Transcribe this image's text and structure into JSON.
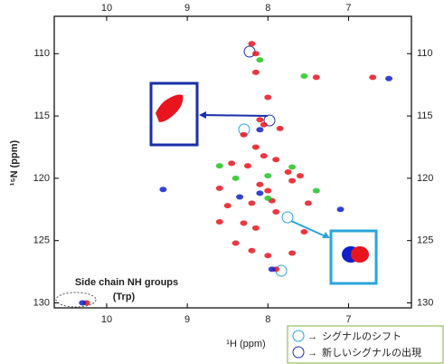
{
  "chart_data": {
    "type": "scatter",
    "x_label": "¹H (ppm)",
    "y_label": "¹⁵N (ppm)",
    "xlim": [
      10.65,
      6.22
    ],
    "ylim": [
      107,
      130.4
    ],
    "xticks": [
      10,
      9,
      8,
      7
    ],
    "yticks": [
      110,
      115,
      120,
      125,
      130
    ],
    "series": [
      {
        "color": "#e8141e",
        "x": [
          8.2,
          8.15,
          7.4,
          6.7,
          8.1,
          8.05,
          7.85,
          8.3,
          8.15,
          8.05,
          7.9,
          8.25,
          7.75,
          7.6,
          8.1,
          8.0,
          7.95,
          8.2,
          8.5,
          7.9,
          8.6,
          8.3,
          8.15,
          7.55,
          8.4,
          8.2,
          8.0,
          7.7,
          7.9,
          10.25,
          8.45,
          8.6,
          7.5,
          7.7,
          8.0,
          8.15
        ],
        "values": [
          109.2,
          110,
          111.9,
          111.9,
          115.3,
          115.7,
          116,
          116.5,
          117.5,
          118.2,
          118.5,
          119,
          119.5,
          119.8,
          120.5,
          121,
          121.8,
          122,
          122.2,
          122.7,
          123.5,
          123.6,
          124,
          124.3,
          125.2,
          125.8,
          126.2,
          126,
          127.3,
          130,
          118.8,
          120.8,
          122,
          120.2,
          113.5,
          111.5
        ]
      },
      {
        "color": "#1020c8",
        "x": [
          8.1,
          8.35,
          9.3,
          8.1,
          7.95,
          6.5,
          10.3,
          7.1
        ],
        "values": [
          121.2,
          121.5,
          120.9,
          116.1,
          127.3,
          112,
          130,
          122.5
        ]
      },
      {
        "color": "#22c422",
        "x": [
          8.1,
          7.7,
          8.6,
          8.0,
          8.0,
          7.4,
          8.4,
          7.55
        ],
        "values": [
          110.5,
          119.1,
          119,
          119.8,
          121.6,
          121,
          120,
          111.8
        ]
      }
    ],
    "annotations": [
      "Side chain NH groups",
      "(Trp)"
    ],
    "legend": [
      "シグナルのシフト",
      "新しいシグナルの出現"
    ]
  }
}
